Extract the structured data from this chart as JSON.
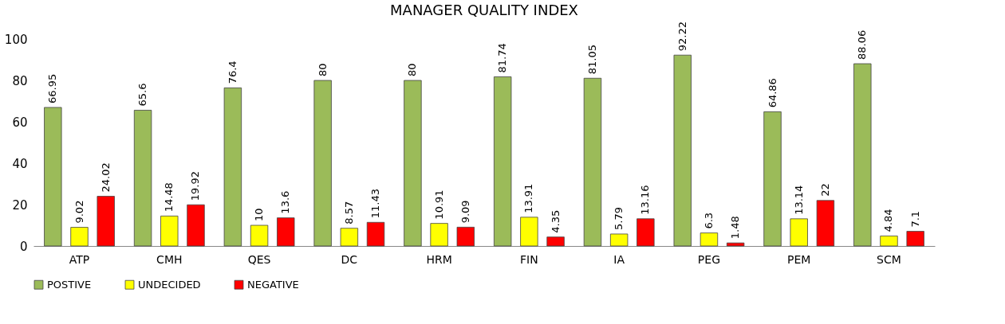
{
  "chart_data": {
    "type": "bar",
    "title": "MANAGER  QUALITY  INDEX",
    "categories": [
      "ATP",
      "CMH",
      "QES",
      "DC",
      "HRM",
      "FIN",
      "IA",
      "PEG",
      "PEM",
      "SCM"
    ],
    "series": [
      {
        "name": "POSTIVE",
        "color": "#9bbb59",
        "values": [
          66.95,
          65.6,
          76.4,
          80,
          80,
          81.74,
          81.05,
          92.22,
          64.86,
          88.06
        ]
      },
      {
        "name": "UNDECIDED",
        "color": "#ffff00",
        "values": [
          9.02,
          14.48,
          10,
          8.57,
          10.91,
          13.91,
          5.79,
          6.3,
          13.14,
          4.84
        ]
      },
      {
        "name": "NEGATIVE",
        "color": "#ff0000",
        "values": [
          24.02,
          19.92,
          13.6,
          11.43,
          9.09,
          4.35,
          13.16,
          1.48,
          22,
          7.1
        ]
      }
    ],
    "ylim": [
      0,
      100
    ],
    "yticks": [
      0,
      20,
      40,
      60,
      80,
      100
    ],
    "grid": false,
    "legend": "bottom",
    "data_labels": true
  }
}
